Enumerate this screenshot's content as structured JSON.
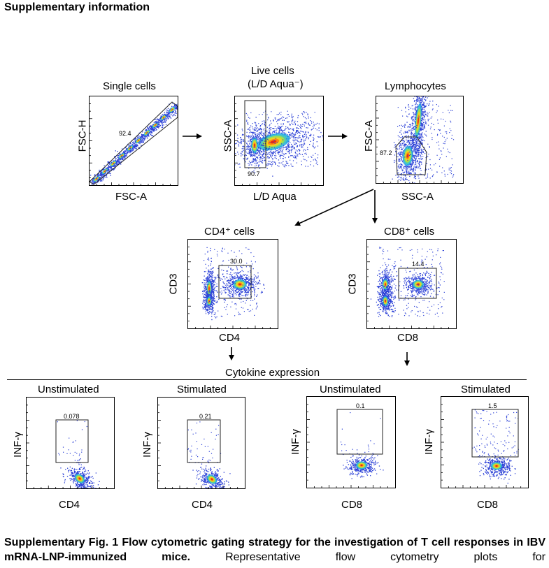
{
  "header": "Supplementary information",
  "panels": {
    "single": {
      "title": "Single cells",
      "xlabel": "FSC-A",
      "ylabel": "FSC-H",
      "gate_value": "92.4"
    },
    "live": {
      "title_line1": "Live cells",
      "title_line2": "(L/D Aqua⁻)",
      "xlabel": "L/D Aqua",
      "ylabel": "SSC-A",
      "gate_value": "90.7"
    },
    "lymph": {
      "title": "Lymphocytes",
      "xlabel": "SSC-A",
      "ylabel": "FSC-A",
      "gate_value": "87.2"
    },
    "cd4": {
      "title": "CD4⁺ cells",
      "xlabel": "CD4",
      "ylabel": "CD3",
      "gate_value": "30.0"
    },
    "cd8": {
      "title": "CD8⁺ cells",
      "xlabel": "CD8",
      "ylabel": "CD3",
      "gate_value": "14.4"
    },
    "cd4_unstim": {
      "title": "Unstimulated",
      "xlabel": "CD4",
      "ylabel": "INF-γ",
      "gate_value": "0.078"
    },
    "cd4_stim": {
      "title": "Stimulated",
      "xlabel": "CD4",
      "ylabel": "INF-γ",
      "gate_value": "0.21"
    },
    "cd8_unstim": {
      "title": "Unstimulated",
      "xlabel": "CD8",
      "ylabel": "INF-γ",
      "gate_value": "0.1"
    },
    "cd8_stim": {
      "title": "Stimulated",
      "xlabel": "CD8",
      "ylabel": "INF-γ",
      "gate_value": "1.5"
    }
  },
  "cytokine_heading": "Cytokine expression",
  "caption": {
    "bold": "Supplementary Fig. 1 Flow cytometric gating strategy for the investigation of T cell responses in IBV mRNA-LNP-immunized mice.",
    "normal": " Representative flow cytometry plots for"
  }
}
